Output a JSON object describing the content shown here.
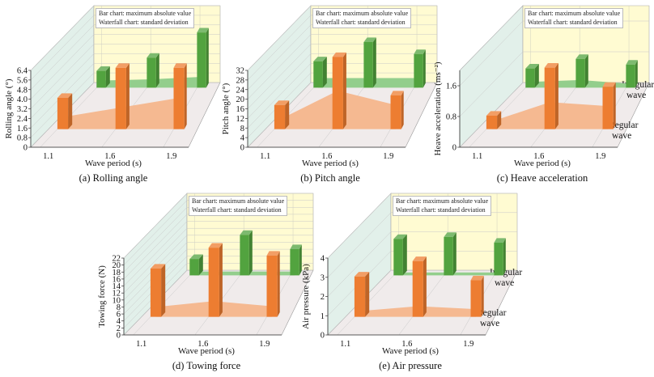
{
  "legend": {
    "line1": "Bar chart: maximum absolute value",
    "line2": "Waterfall chart: standard deviation"
  },
  "colors": {
    "regular_bar": "#ED7D31",
    "irregular_bar": "#52A33F",
    "regular_fill": "#F5B991",
    "irregular_fill": "#93CE8C",
    "back_wall": "#FFFBD2",
    "left_wall": "#E2F0EA",
    "floor": "#F0EBEB"
  },
  "chart_data": [
    {
      "id": "a",
      "type": "bar",
      "caption": "(a) Rolling angle",
      "xlabel": "Wave period (s)",
      "ylabel": "Rolling angle (°)",
      "categories": [
        "1.1",
        "1.6",
        "1.9"
      ],
      "ylim": [
        0,
        6.4
      ],
      "yticks": [
        "0",
        "0.8",
        "1.6",
        "2.4",
        "3.2",
        "4.0",
        "4.8",
        "5.6",
        "6.4"
      ],
      "depth_labels": [],
      "series": [
        {
          "row": "regular",
          "max_abs": [
            2.6,
            5.1,
            5.1
          ],
          "std": [
            1.0,
            1.8,
            2.6
          ]
        },
        {
          "row": "irregular",
          "max_abs": [
            1.4,
            2.5,
            4.6
          ],
          "std": [
            0.6,
            0.7,
            0.9
          ]
        }
      ]
    },
    {
      "id": "b",
      "type": "bar",
      "caption": "(b) Pitch angle",
      "xlabel": "Wave period (s)",
      "ylabel": "Pitch angle (°)",
      "categories": [
        "1.1",
        "1.6",
        "1.9"
      ],
      "ylim": [
        0,
        32
      ],
      "yticks": [
        "0",
        "4",
        "8",
        "12",
        "16",
        "20",
        "24",
        "28",
        "32"
      ],
      "depth_labels": [],
      "series": [
        {
          "row": "regular",
          "max_abs": [
            10,
            30,
            14
          ],
          "std": [
            4,
            16,
            10
          ]
        },
        {
          "row": "irregular",
          "max_abs": [
            11,
            19,
            14
          ],
          "std": [
            4,
            4,
            4
          ]
        }
      ]
    },
    {
      "id": "c",
      "type": "bar",
      "caption": "(c) Heave acceleration",
      "xlabel": "Wave period (s)",
      "ylabel": "Heave acceleration (ms⁻²)",
      "categories": [
        "1.1",
        "1.6",
        "1.9"
      ],
      "ylim": [
        0,
        2.0
      ],
      "yticks": [
        "0",
        "0.8",
        "1.6"
      ],
      "depth_labels": [
        "Irregular",
        "wave",
        "Regular",
        "wave"
      ],
      "series": [
        {
          "row": "regular",
          "max_abs": [
            0.35,
            1.6,
            1.1
          ],
          "std": [
            0.2,
            0.7,
            0.6
          ]
        },
        {
          "row": "irregular",
          "max_abs": [
            0.5,
            0.75,
            0.6
          ],
          "std": [
            0.15,
            0.2,
            0.1
          ]
        }
      ]
    },
    {
      "id": "d",
      "type": "bar",
      "caption": "(d) Towing force",
      "xlabel": "Wave period (s)",
      "ylabel": "Towing force (N)",
      "categories": [
        "1.1",
        "1.6",
        "1.9"
      ],
      "ylim": [
        0,
        22
      ],
      "yticks": [
        "0",
        "2",
        "4",
        "6",
        "8",
        "10",
        "12",
        "14",
        "16",
        "18",
        "20",
        "22"
      ],
      "depth_labels": [],
      "series": [
        {
          "row": "regular",
          "max_abs": [
            13.8,
            19.8,
            17.5
          ],
          "std": [
            2.8,
            4.5,
            3.0
          ]
        },
        {
          "row": "irregular",
          "max_abs": [
            4.7,
            11.6,
            7.5
          ],
          "std": [
            1.1,
            1.1,
            1.1
          ]
        }
      ]
    },
    {
      "id": "e",
      "type": "bar",
      "caption": "(e) Air pressure",
      "xlabel": "Wave period (s)",
      "ylabel": "Air pressure (kPa)",
      "categories": [
        "1.1",
        "1.6",
        "1.9"
      ],
      "ylim": [
        0,
        4
      ],
      "yticks": [
        "0",
        "1",
        "2",
        "3",
        "4"
      ],
      "depth_labels": [
        "Irregular",
        "wave",
        "Regular",
        "wave"
      ],
      "series": [
        {
          "row": "regular",
          "max_abs": [
            2.1,
            2.9,
            1.9
          ],
          "std": [
            0.3,
            0.55,
            0.4
          ]
        },
        {
          "row": "irregular",
          "max_abs": [
            1.9,
            2.0,
            1.7
          ],
          "std": [
            0.15,
            0.15,
            0.15
          ]
        }
      ]
    }
  ]
}
